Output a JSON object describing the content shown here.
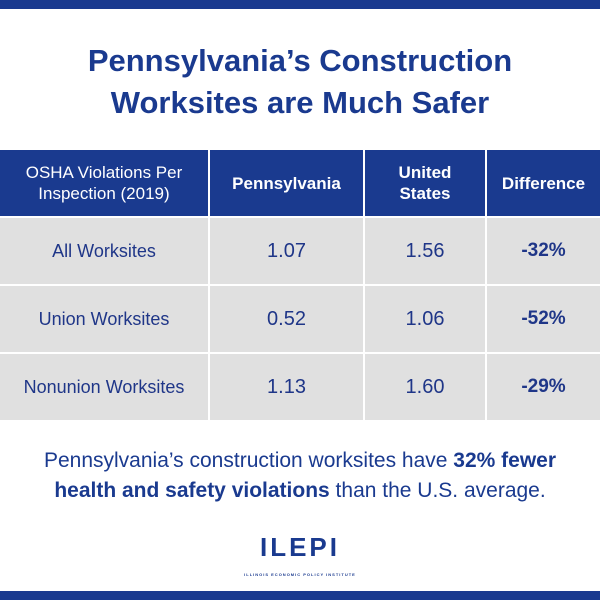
{
  "title": {
    "line1": "Pennsylvania’s Construction",
    "line2": "Worksites are Much Safer"
  },
  "table": {
    "headers": {
      "c1_line1": "OSHA Violations Per",
      "c1_line2": "Inspection (2019)",
      "c2": "Pennsylvania",
      "c3_line1": "United",
      "c3_line2": "States",
      "c4": "Difference"
    },
    "rows": [
      {
        "label": "All Worksites",
        "pa": "1.07",
        "us": "1.56",
        "diff": "-32%"
      },
      {
        "label": "Union Worksites",
        "pa": "0.52",
        "us": "1.06",
        "diff": "-52%"
      },
      {
        "label": "Nonunion Worksites",
        "pa": "1.13",
        "us": "1.60",
        "diff": "-29%"
      }
    ]
  },
  "summary": {
    "part1": "Pennsylvania’s construction worksites have ",
    "bold1": "32% fewer",
    "bold2": "health and safety violations",
    "part2": " than the U.S. average."
  },
  "logo": {
    "text": "ILEPI",
    "subtitle": "ILLINOIS ECONOMIC POLICY INSTITUTE"
  },
  "colors": {
    "brand": "#1a3a8f",
    "row_bg": "#e0e0e0"
  }
}
